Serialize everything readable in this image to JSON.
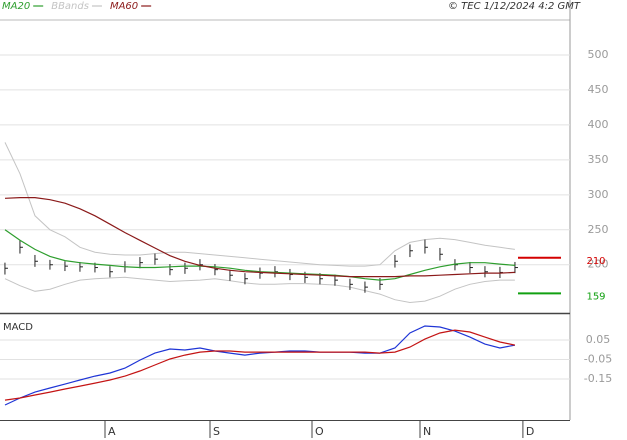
{
  "chart_data": [
    {
      "type": "ohlc",
      "annotation": "© TEC 1/12/2024 4:2 GMT",
      "xlim": [
        -0.33,
        37.67
      ],
      "ylim": [
        131,
        550
      ],
      "yticks": [
        200,
        250,
        300,
        350,
        400,
        450,
        500
      ],
      "grid": true,
      "bar_color": "#222222",
      "close": [
        195,
        225,
        205,
        200,
        198,
        197,
        196,
        190,
        197,
        203,
        208,
        193,
        195,
        200,
        193,
        185,
        180,
        188,
        190,
        186,
        182,
        180,
        178,
        172,
        168,
        172,
        205,
        220,
        225,
        215,
        200,
        196,
        190,
        189,
        196
      ],
      "high": [
        203,
        235,
        214,
        207,
        205,
        204,
        203,
        198,
        205,
        211,
        216,
        201,
        203,
        208,
        201,
        193,
        188,
        196,
        198,
        194,
        190,
        188,
        186,
        180,
        176,
        181,
        214,
        229,
        236,
        224,
        208,
        204,
        198,
        197,
        204
      ],
      "low": [
        186,
        216,
        197,
        193,
        191,
        190,
        189,
        182,
        189,
        195,
        200,
        185,
        187,
        192,
        185,
        177,
        172,
        180,
        182,
        178,
        174,
        172,
        170,
        164,
        160,
        164,
        196,
        211,
        216,
        206,
        192,
        188,
        182,
        181,
        188
      ],
      "series": [
        {
          "name": "MA20",
          "color": "#2e9e2e",
          "values": [
            250,
            235,
            222,
            212,
            206,
            203,
            201,
            199,
            197,
            196,
            196,
            197,
            198,
            198,
            197,
            195,
            192,
            190,
            189,
            188,
            187,
            186,
            185,
            183,
            180,
            178,
            180,
            186,
            192,
            197,
            201,
            203,
            203,
            201,
            199
          ]
        },
        {
          "name": "MA60",
          "color": "#8b1a1a",
          "values": [
            295,
            296,
            296,
            293,
            288,
            280,
            270,
            258,
            246,
            235,
            224,
            213,
            205,
            199,
            195,
            192,
            190,
            189,
            188,
            187,
            186,
            185,
            184,
            183,
            183,
            183,
            183,
            184,
            184,
            185,
            186,
            187,
            188,
            188,
            189
          ]
        }
      ],
      "bands": {
        "name": "BBands",
        "color": "#c4c4c4",
        "upper": [
          375,
          330,
          270,
          250,
          240,
          225,
          218,
          215,
          214,
          214,
          216,
          218,
          218,
          216,
          214,
          212,
          210,
          208,
          206,
          204,
          202,
          200,
          199,
          198,
          198,
          200,
          220,
          232,
          236,
          238,
          236,
          232,
          228,
          225,
          222
        ],
        "lower": [
          180,
          170,
          162,
          165,
          172,
          178,
          180,
          181,
          182,
          180,
          178,
          176,
          177,
          178,
          180,
          177,
          174,
          172,
          172,
          173,
          173,
          172,
          171,
          168,
          163,
          158,
          150,
          146,
          148,
          155,
          165,
          172,
          176,
          178,
          178
        ]
      },
      "levels": [
        {
          "value": 210,
          "color": "#d40000"
        },
        {
          "value": 159,
          "color": "#11a011"
        }
      ]
    },
    {
      "type": "line",
      "title": "MACD",
      "xlim": [
        -0.33,
        37.67
      ],
      "xticks": [
        {
          "value": 6.67,
          "label": "A"
        },
        {
          "value": 13.67,
          "label": "S"
        },
        {
          "value": 20.47,
          "label": "O"
        },
        {
          "value": 27.67,
          "label": "N"
        },
        {
          "value": 34.53,
          "label": "D"
        }
      ],
      "ylim": [
        -0.36,
        0.163
      ],
      "yticks": [
        -0.15,
        -0.05,
        0.05
      ],
      "grid": true,
      "series": [
        {
          "color": "#1f35d6",
          "values": [
            -0.283,
            -0.247,
            -0.217,
            -0.196,
            -0.176,
            -0.155,
            -0.135,
            -0.119,
            -0.094,
            -0.053,
            -0.017,
            0.004,
            -0.001,
            0.009,
            -0.006,
            -0.017,
            -0.027,
            -0.017,
            -0.012,
            -0.006,
            -0.006,
            -0.012,
            -0.012,
            -0.012,
            -0.017,
            -0.017,
            0.009,
            0.086,
            0.122,
            0.117,
            0.096,
            0.065,
            0.029,
            0.009,
            0.024
          ]
        },
        {
          "color": "#c41414",
          "values": [
            -0.258,
            -0.247,
            -0.232,
            -0.217,
            -0.201,
            -0.186,
            -0.171,
            -0.155,
            -0.135,
            -0.109,
            -0.078,
            -0.047,
            -0.027,
            -0.012,
            -0.006,
            -0.006,
            -0.012,
            -0.012,
            -0.012,
            -0.012,
            -0.012,
            -0.012,
            -0.012,
            -0.012,
            -0.012,
            -0.017,
            -0.012,
            0.014,
            0.055,
            0.086,
            0.101,
            0.091,
            0.065,
            0.04,
            0.024
          ]
        }
      ]
    }
  ]
}
